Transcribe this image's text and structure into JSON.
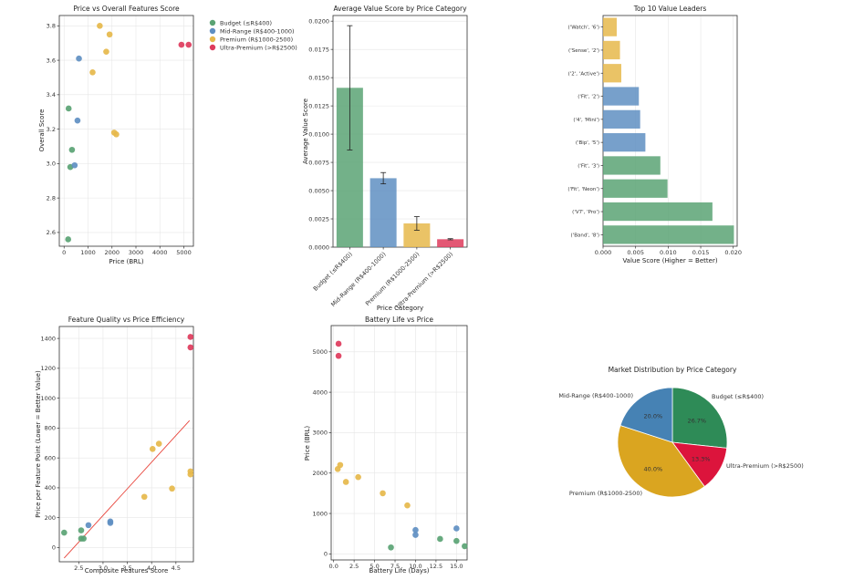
{
  "colors": {
    "budget": "#5aa374",
    "mid": "#5f8fc2",
    "premium": "#e6b84b",
    "ultra": "#de3b5c",
    "fit": "#e8453c",
    "pie_budget": "#2e8b57",
    "pie_mid": "#4682b4",
    "pie_premium": "#daa520",
    "pie_ultra": "#dc143c"
  },
  "chart_data": [
    {
      "type": "scatter",
      "title": "Price vs Overall Features Score",
      "xlabel": "Price (BRL)",
      "ylabel": "Overall Score",
      "xlim": [
        -200,
        5400
      ],
      "ylim": [
        2.52,
        3.86
      ],
      "xticks": [
        0,
        1000,
        2000,
        3000,
        4000,
        5000
      ],
      "yticks": [
        2.6,
        2.8,
        3.0,
        3.2,
        3.4,
        3.6,
        3.8
      ],
      "ytick_labels": [
        "2.6",
        "2.8",
        "3.0",
        "3.2",
        "3.4",
        "3.6",
        "3.8"
      ],
      "legend": [
        "Budget (≤R$400)",
        "Mid-Range (R$400-1000)",
        "Premium (R$1000-2500)",
        "Ultra-Premium (>R$2500)"
      ],
      "series": [
        {
          "name": "Budget",
          "color_key": "budget",
          "points": [
            [
              170,
              2.56
            ],
            [
              190,
              3.32
            ],
            [
              260,
              2.98
            ],
            [
              330,
              3.08
            ]
          ]
        },
        {
          "name": "Mid-Range",
          "color_key": "mid",
          "points": [
            [
              440,
              2.99
            ],
            [
              560,
              3.25
            ],
            [
              620,
              3.61
            ]
          ]
        },
        {
          "name": "Premium",
          "color_key": "premium",
          "points": [
            [
              1190,
              3.53
            ],
            [
              1490,
              3.8
            ],
            [
              1760,
              3.65
            ],
            [
              1900,
              3.75
            ],
            [
              2090,
              3.18
            ],
            [
              2180,
              3.17
            ]
          ]
        },
        {
          "name": "Ultra-Premium",
          "color_key": "ultra",
          "points": [
            [
              4900,
              3.69
            ],
            [
              5200,
              3.69
            ]
          ]
        }
      ]
    },
    {
      "type": "bar",
      "title": "Average Value Score by Price Category",
      "xlabel": "Price Category",
      "ylabel": "Average Value Score",
      "categories": [
        "Budget (≤R$400)",
        "Mid-Range (R$400-1000)",
        "Premium (R$1000-2500)",
        "Ultra-Premium (>R$2500)"
      ],
      "values": [
        0.0141,
        0.0061,
        0.0021,
        0.0007
      ],
      "errors": [
        0.0055,
        0.0005,
        0.0006,
        5e-05
      ],
      "color_keys": [
        "budget",
        "mid",
        "premium",
        "ultra"
      ],
      "ylim": [
        0,
        0.0205
      ],
      "yticks": [
        0,
        0.0025,
        0.005,
        0.0075,
        0.01,
        0.0125,
        0.015,
        0.0175,
        0.02
      ],
      "ytick_labels": [
        "0.0000",
        "0.0025",
        "0.0050",
        "0.0075",
        "0.0100",
        "0.0125",
        "0.0150",
        "0.0175",
        "0.0200"
      ]
    },
    {
      "type": "bar",
      "orientation": "horizontal",
      "title": "Top 10 Value Leaders",
      "xlabel": "Value Score (Higher = Better)",
      "categories": [
        "('Watch', '6')",
        "('Sense', '2')",
        "('2', 'Active')",
        "('Fit', '2')",
        "('4', 'Mini')",
        "('Bip', '5')",
        "('Fit', '3')",
        "('Fit', 'Neon')",
        "('V7', 'Pro')",
        "('Band', '8')"
      ],
      "values": [
        0.0021,
        0.0026,
        0.0028,
        0.0055,
        0.0057,
        0.0065,
        0.0088,
        0.0099,
        0.0168,
        0.0201
      ],
      "color_keys": [
        "premium",
        "premium",
        "premium",
        "mid",
        "mid",
        "mid",
        "budget",
        "budget",
        "budget",
        "budget"
      ],
      "xlim": [
        0,
        0.0206
      ],
      "xticks": [
        0,
        0.005,
        0.01,
        0.015,
        0.02
      ],
      "xtick_labels": [
        "0.000",
        "0.005",
        "0.010",
        "0.015",
        "0.020"
      ]
    },
    {
      "type": "scatter",
      "title": "Feature Quality vs Price Efficiency",
      "xlabel": "Composite Features Score",
      "ylabel": "Price per Feature Point (Lower = Better Value)",
      "xlim": [
        2.1,
        4.86
      ],
      "ylim": [
        -95,
        1480
      ],
      "xticks": [
        2.5,
        3.0,
        3.5,
        4.0,
        4.5
      ],
      "xtick_labels": [
        "2.5",
        "3.0",
        "3.5",
        "4.0",
        "4.5"
      ],
      "yticks": [
        0,
        200,
        400,
        600,
        800,
        1000,
        1200,
        1400
      ],
      "series": [
        {
          "name": "Budget",
          "color_key": "budget",
          "points": [
            [
              2.2,
              100
            ],
            [
              2.55,
              115
            ],
            [
              2.55,
              60
            ],
            [
              2.6,
              60
            ]
          ]
        },
        {
          "name": "Mid-Range",
          "color_key": "mid",
          "points": [
            [
              2.7,
              150
            ],
            [
              3.15,
              175
            ],
            [
              3.15,
              165
            ]
          ]
        },
        {
          "name": "Premium",
          "color_key": "premium",
          "points": [
            [
              3.85,
              340
            ],
            [
              4.02,
              660
            ],
            [
              4.15,
              695
            ],
            [
              4.42,
              395
            ],
            [
              4.8,
              510
            ],
            [
              4.8,
              490
            ]
          ]
        },
        {
          "name": "Ultra-Premium",
          "color_key": "ultra",
          "points": [
            [
              4.8,
              1410
            ],
            [
              4.8,
              1340
            ]
          ]
        }
      ],
      "trendline": [
        [
          2.2,
          -70
        ],
        [
          4.78,
          850
        ]
      ]
    },
    {
      "type": "scatter",
      "title": "Battery Life vs Price",
      "xlabel": "Battery Life (Days)",
      "ylabel": "Price (BRL)",
      "xlim": [
        -0.3,
        16.3
      ],
      "ylim": [
        -150,
        5650
      ],
      "xticks": [
        0,
        2.5,
        5,
        7.5,
        10,
        12.5,
        15
      ],
      "xtick_labels": [
        "0.0",
        "2.5",
        "5.0",
        "7.5",
        "10.0",
        "12.5",
        "15.0"
      ],
      "yticks": [
        0,
        1000,
        2000,
        3000,
        4000,
        5000
      ],
      "series": [
        {
          "name": "Budget",
          "color_key": "budget",
          "points": [
            [
              7,
              160
            ],
            [
              13,
              370
            ],
            [
              15,
              320
            ],
            [
              16,
              190
            ]
          ]
        },
        {
          "name": "Mid-Range",
          "color_key": "mid",
          "points": [
            [
              10,
              590
            ],
            [
              10,
              470
            ],
            [
              15,
              630
            ]
          ]
        },
        {
          "name": "Premium",
          "color_key": "premium",
          "points": [
            [
              0.5,
              2100
            ],
            [
              0.8,
              2200
            ],
            [
              1.5,
              1780
            ],
            [
              3,
              1900
            ],
            [
              6,
              1500
            ],
            [
              9,
              1200
            ]
          ]
        },
        {
          "name": "Ultra-Premium",
          "color_key": "ultra",
          "points": [
            [
              0.6,
              5200
            ],
            [
              0.6,
              4900
            ]
          ]
        }
      ]
    },
    {
      "type": "pie",
      "title": "Market Distribution by Price Category",
      "labels": [
        "Budget (≤R$400)",
        "Ultra-Premium (>R$2500)",
        "Premium (R$1000-2500)",
        "Mid-Range (R$400-1000)"
      ],
      "values": [
        26.7,
        13.3,
        40.0,
        20.0
      ],
      "pct_labels": [
        "26.7%",
        "13.3%",
        "40.0%",
        "20.0%"
      ],
      "color_keys": [
        "pie_budget",
        "pie_ultra",
        "pie_premium",
        "pie_mid"
      ]
    }
  ]
}
